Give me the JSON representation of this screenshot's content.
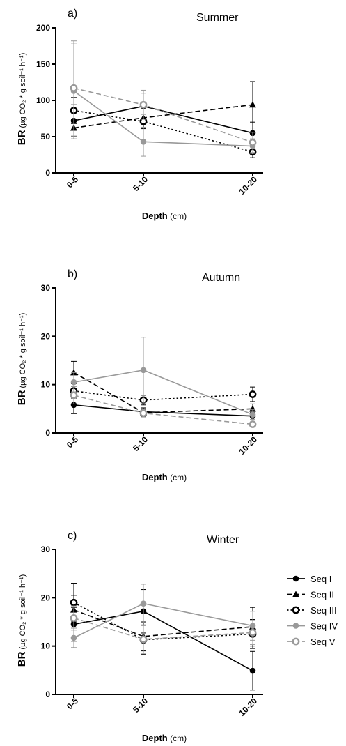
{
  "chart_data": [
    {
      "type": "line",
      "panel_label": "a)",
      "title": "Summer",
      "ylabel": {
        "bold": "BR",
        "rest": " (µg CO₂ * g soil⁻¹ h⁻¹)"
      },
      "xlabel": {
        "bold": "Depth",
        "rest": " (cm)"
      },
      "categories": [
        "0-5",
        "5-10",
        "10-20"
      ],
      "ylim": [
        0,
        200
      ],
      "yticks": [
        0,
        50,
        100,
        150,
        200
      ],
      "series": [
        {
          "name": "Seq I",
          "color": "#000000",
          "dash": "solid",
          "marker": "filled-circle",
          "values": [
            72,
            92,
            55
          ],
          "errors": [
            22,
            18,
            15
          ]
        },
        {
          "name": "Seq II",
          "color": "#000000",
          "dash": "dashed",
          "marker": "filled-triangle",
          "values": [
            62,
            76,
            94
          ],
          "errors": [
            12,
            14,
            32
          ]
        },
        {
          "name": "Seq III",
          "color": "#000000",
          "dash": "dotted",
          "marker": "open-circle",
          "values": [
            86,
            71,
            29
          ],
          "errors": [
            18,
            10,
            8
          ]
        },
        {
          "name": "Seq IV",
          "color": "#999999",
          "dash": "solid",
          "marker": "filled-circle",
          "values": [
            113,
            43,
            37
          ],
          "errors": [
            66,
            20,
            10
          ]
        },
        {
          "name": "Seq V",
          "color": "#999999",
          "dash": "dashed",
          "marker": "open-circle",
          "values": [
            117,
            94,
            42
          ],
          "errors": [
            65,
            20,
            14
          ]
        }
      ]
    },
    {
      "type": "line",
      "panel_label": "b)",
      "title": "Autumn",
      "ylabel": {
        "bold": "BR",
        "rest": " (µg CO₂ * g soil⁻¹ h⁻¹)"
      },
      "xlabel": {
        "bold": "Depth",
        "rest": " (cm)"
      },
      "categories": [
        "0-5",
        "5-10",
        "10-20"
      ],
      "ylim": [
        0,
        30
      ],
      "yticks": [
        0,
        10,
        20,
        30
      ],
      "series": [
        {
          "name": "Seq I",
          "color": "#000000",
          "dash": "solid",
          "marker": "filled-circle",
          "values": [
            5.8,
            4.4,
            3.5
          ],
          "errors": [
            1.8,
            0.8,
            0.8
          ]
        },
        {
          "name": "Seq II",
          "color": "#000000",
          "dash": "dashed",
          "marker": "filled-triangle",
          "values": [
            12.5,
            4.2,
            5.0
          ],
          "errors": [
            2.3,
            0.8,
            1.0
          ]
        },
        {
          "name": "Seq III",
          "color": "#000000",
          "dash": "dotted",
          "marker": "open-circle",
          "values": [
            8.7,
            6.8,
            8.0
          ],
          "errors": [
            1.5,
            1.0,
            1.5
          ]
        },
        {
          "name": "Seq IV",
          "color": "#999999",
          "dash": "solid",
          "marker": "filled-circle",
          "values": [
            10.5,
            13.0,
            3.8
          ],
          "errors": [
            2.0,
            6.8,
            1.0
          ]
        },
        {
          "name": "Seq V",
          "color": "#999999",
          "dash": "dashed",
          "marker": "open-circle",
          "values": [
            7.8,
            4.1,
            1.8
          ],
          "errors": [
            1.8,
            0.8,
            0.5
          ]
        }
      ]
    },
    {
      "type": "line",
      "panel_label": "c)",
      "title": "Winter",
      "ylabel": {
        "bold": "BR",
        "rest": " (µg CO₂ * g soil⁻¹ h⁻¹)"
      },
      "xlabel": {
        "bold": "Depth",
        "rest": " (cm)"
      },
      "categories": [
        "0-5",
        "5-10",
        "10-20"
      ],
      "ylim": [
        0,
        30
      ],
      "yticks": [
        0,
        10,
        20,
        30
      ],
      "series": [
        {
          "name": "Seq I",
          "color": "#000000",
          "dash": "solid",
          "marker": "filled-circle",
          "values": [
            14.5,
            17.2,
            4.9
          ],
          "errors": [
            3.5,
            4.5,
            4.0
          ]
        },
        {
          "name": "Seq II",
          "color": "#000000",
          "dash": "dashed",
          "marker": "filled-triangle",
          "values": [
            17.5,
            12.0,
            14.0
          ],
          "errors": [
            3.0,
            3.0,
            4.0
          ]
        },
        {
          "name": "Seq III",
          "color": "#000000",
          "dash": "dotted",
          "marker": "open-circle",
          "values": [
            19.0,
            11.3,
            12.5
          ],
          "errors": [
            4.0,
            3.0,
            3.0
          ]
        },
        {
          "name": "Seq IV",
          "color": "#999999",
          "dash": "solid",
          "marker": "filled-circle",
          "values": [
            11.7,
            18.8,
            14.2
          ],
          "errors": [
            2.0,
            4.0,
            3.0
          ]
        },
        {
          "name": "Seq V",
          "color": "#999999",
          "dash": "dashed",
          "marker": "open-circle",
          "values": [
            15.8,
            11.4,
            12.8
          ],
          "errors": [
            2.5,
            3.0,
            2.5
          ]
        }
      ]
    }
  ],
  "legend": {
    "placement": "right of panel c",
    "items": [
      {
        "label": "Seq I",
        "color": "#000000",
        "dash": "solid",
        "marker": "filled-circle"
      },
      {
        "label": "Seq II",
        "color": "#000000",
        "dash": "dashed",
        "marker": "filled-triangle"
      },
      {
        "label": "Seq III",
        "color": "#000000",
        "dash": "dotted",
        "marker": "open-circle"
      },
      {
        "label": "Seq IV",
        "color": "#999999",
        "dash": "solid",
        "marker": "filled-circle"
      },
      {
        "label": "Seq V",
        "color": "#999999",
        "dash": "dashed",
        "marker": "open-circle"
      }
    ]
  }
}
